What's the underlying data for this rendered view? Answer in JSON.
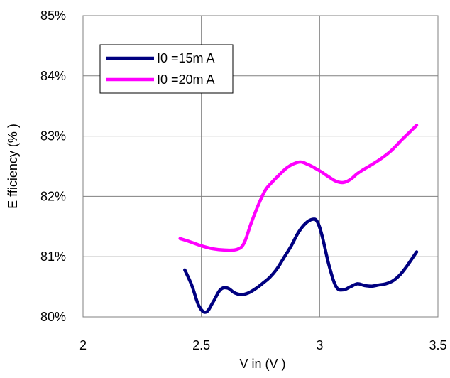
{
  "chart_data": {
    "type": "line",
    "title": "",
    "xlabel": "V in (V )",
    "ylabel": "E fficiency (% )",
    "xlim": [
      2,
      3.5
    ],
    "ylim": [
      80,
      85
    ],
    "x_ticks": [
      "2",
      "2.5",
      "3",
      "3.5"
    ],
    "y_ticks": [
      "80%",
      "81%",
      "82%",
      "83%",
      "84%",
      "85%"
    ],
    "x_tick_values": [
      2,
      2.5,
      3,
      3.5
    ],
    "y_tick_values": [
      80,
      81,
      82,
      83,
      84,
      85
    ],
    "grid": true,
    "legend_position": "top-left",
    "series": [
      {
        "name": "I0 =15m A",
        "color": "#000080",
        "x": [
          2.43,
          2.46,
          2.49,
          2.52,
          2.55,
          2.58,
          2.61,
          2.64,
          2.67,
          2.7,
          2.73,
          2.76,
          2.79,
          2.82,
          2.85,
          2.88,
          2.91,
          2.94,
          2.97,
          2.99,
          3.01,
          3.04,
          3.07,
          3.1,
          3.13,
          3.16,
          3.19,
          3.22,
          3.25,
          3.28,
          3.31,
          3.34,
          3.37,
          3.41
        ],
        "y": [
          80.78,
          80.52,
          80.18,
          80.08,
          80.25,
          80.45,
          80.48,
          80.4,
          80.37,
          80.4,
          80.47,
          80.56,
          80.66,
          80.8,
          80.99,
          81.18,
          81.4,
          81.55,
          81.62,
          81.58,
          81.35,
          80.85,
          80.5,
          80.45,
          80.5,
          80.55,
          80.52,
          80.51,
          80.53,
          80.55,
          80.6,
          80.7,
          80.85,
          81.08
        ]
      },
      {
        "name": "I0 =20m A",
        "color": "#FF00FF",
        "x": [
          2.41,
          2.45,
          2.5,
          2.55,
          2.6,
          2.65,
          2.68,
          2.71,
          2.74,
          2.77,
          2.8,
          2.83,
          2.86,
          2.89,
          2.92,
          2.95,
          2.98,
          3.01,
          3.04,
          3.07,
          3.1,
          3.13,
          3.16,
          3.2,
          3.25,
          3.3,
          3.35,
          3.41
        ],
        "y": [
          81.3,
          81.25,
          81.18,
          81.13,
          81.11,
          81.12,
          81.22,
          81.55,
          81.85,
          82.1,
          82.24,
          82.36,
          82.47,
          82.54,
          82.57,
          82.53,
          82.47,
          82.4,
          82.32,
          82.25,
          82.23,
          82.28,
          82.38,
          82.48,
          82.6,
          82.75,
          82.95,
          83.18
        ]
      }
    ]
  }
}
